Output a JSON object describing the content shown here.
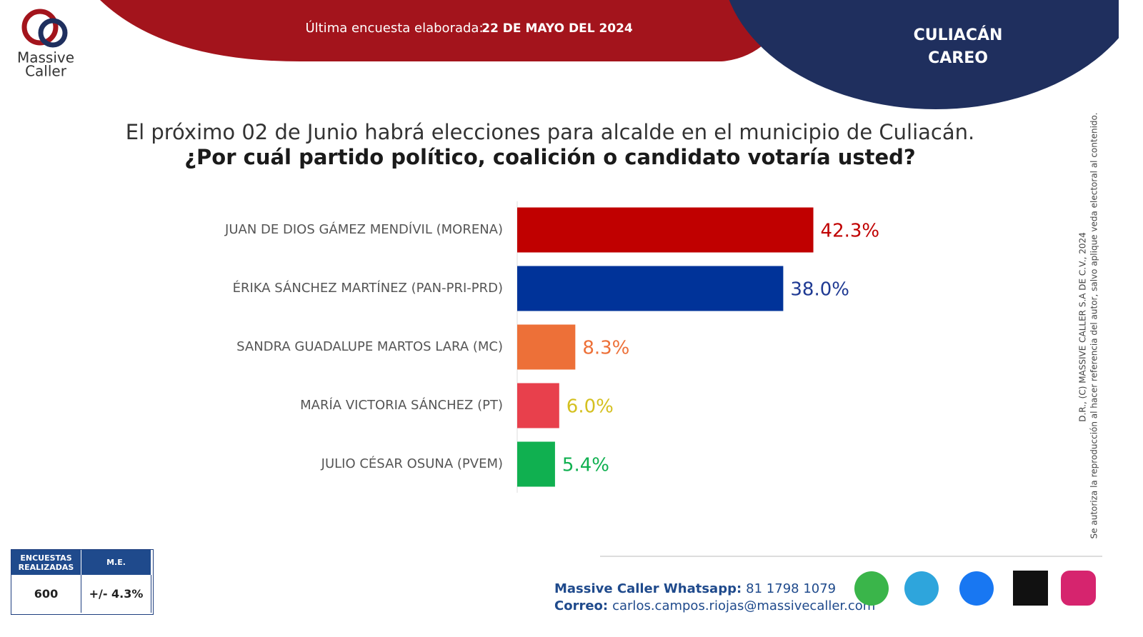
{
  "header": {
    "survey_label": "Última encuesta elaborada:",
    "survey_date": "22 DE MAYO DEL 2024",
    "city": "CULIACÁN",
    "poll_type": "CAREO"
  },
  "logo": {
    "line1": "Massive",
    "line2": "Caller"
  },
  "chart_data": {
    "type": "bar",
    "orientation": "horizontal",
    "title": "El próximo 02 de Junio habrá elecciones para alcalde en el municipio de Culiacán.",
    "subtitle": "¿Por cuál partido político, coalición o candidato votaría usted?",
    "categories": [
      "JUAN DE DIOS GÁMEZ MENDÍVIL (MORENA)",
      "ÉRIKA SÁNCHEZ MARTÍNEZ (PAN-PRI-PRD)",
      "SANDRA GUADALUPE MARTOS LARA (MC)",
      "MARÍA VICTORIA SÁNCHEZ (PT)",
      "JULIO CÉSAR OSUNA (PVEM)"
    ],
    "values": [
      42.3,
      38.0,
      8.3,
      6.0,
      5.4
    ],
    "value_labels": [
      "42.3%",
      "38.0%",
      "8.3%",
      "6.0%",
      "5.4%"
    ],
    "colors": [
      "#c00000",
      "#003399",
      "#ed7038",
      "#e8404c",
      "#10b050"
    ],
    "label_colors": [
      "#c00000",
      "#1f3a93",
      "#ed7038",
      "#d4c020",
      "#10b050"
    ]
  },
  "sidebar": {
    "copyright": "D.R., (C) MASSIVE CALLER S.A DE C.V., 2024",
    "notice": "Se autoriza la reproducción al hacer referencia del autor, salvo aplique veda electoral al contenido."
  },
  "summary_table": {
    "headers": [
      "ENCUESTAS REALIZADAS",
      "M.E."
    ],
    "rows": [
      [
        600,
        "+/- 4.3%"
      ]
    ]
  },
  "footer": {
    "whatsapp_label": "Massive Caller Whatsapp:",
    "whatsapp_number": "81 1798 1079",
    "email_label": "Correo:",
    "email": "carlos.campos.riojas@massivecaller.com"
  }
}
